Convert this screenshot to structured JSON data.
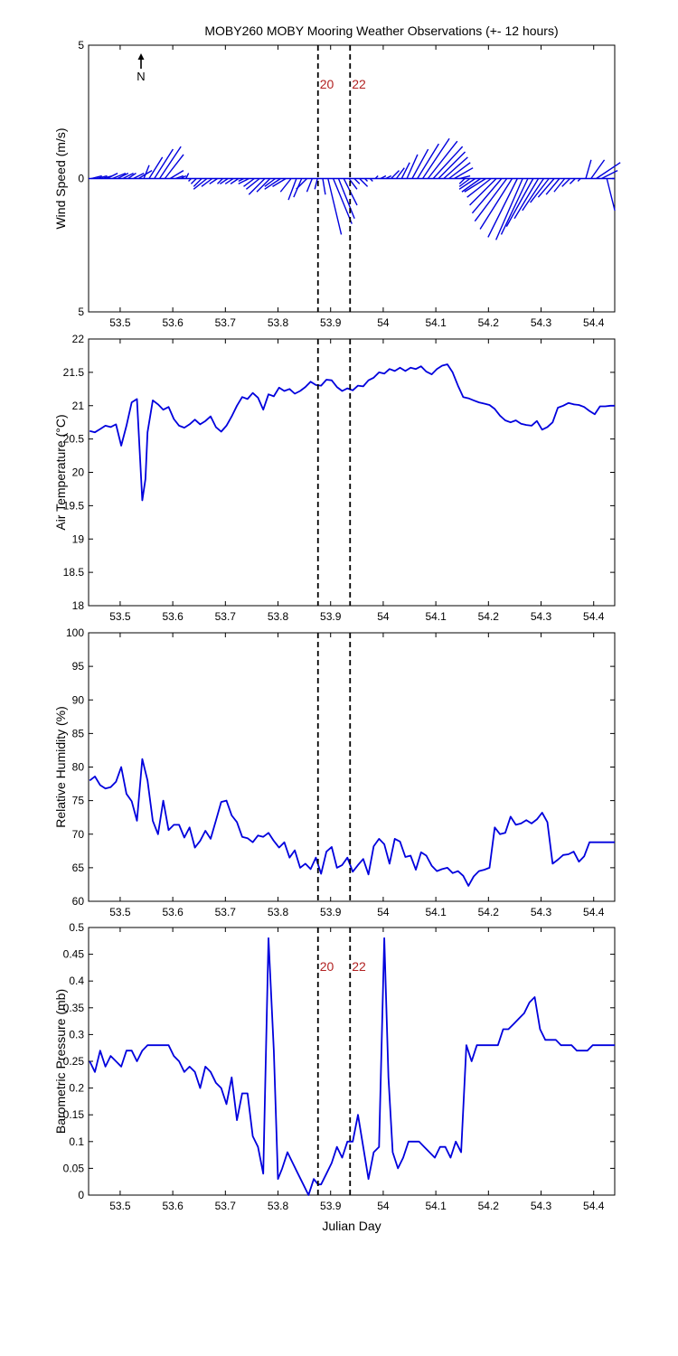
{
  "title": "MOBY260 MOBY Mooring Weather Observations (+- 12 hours)",
  "north_label": "N",
  "colors": {
    "series": "#0000dd",
    "marker_text": "#b22222",
    "axes": "#000000",
    "marker_line": "#000000"
  },
  "chart_data": [
    {
      "type": "line",
      "subtype": "wind-vector-stick",
      "ylabel": "Wind Speed (m/s)",
      "xlabel": "",
      "xlim": [
        53.44,
        54.44
      ],
      "ylim": [
        -5,
        5
      ],
      "y_tick_labels": [
        "5",
        "0",
        "5"
      ],
      "y_ticks": [
        5,
        0,
        -5
      ],
      "x_ticks": [
        53.5,
        53.6,
        53.7,
        53.8,
        53.9,
        54.0,
        54.1,
        54.2,
        54.3,
        54.4
      ],
      "x_tick_labels": [
        "53.5",
        "53.6",
        "53.7",
        "53.8",
        "53.9",
        "54",
        "54.1",
        "54.2",
        "54.3",
        "54.4"
      ],
      "markers": [
        {
          "x": 53.876,
          "label": "20"
        },
        {
          "x": 53.937,
          "label": "22"
        }
      ],
      "grid": false,
      "x": [
        53.445,
        53.455,
        53.465,
        53.475,
        53.485,
        53.495,
        53.505,
        53.515,
        53.525,
        53.535,
        53.545,
        53.555,
        53.565,
        53.575,
        53.585,
        53.595,
        53.605,
        53.615,
        53.625,
        53.635,
        53.645,
        53.655,
        53.665,
        53.675,
        53.685,
        53.695,
        53.705,
        53.715,
        53.725,
        53.735,
        53.745,
        53.755,
        53.765,
        53.775,
        53.785,
        53.795,
        53.805,
        53.815,
        53.825,
        53.835,
        53.845,
        53.855,
        53.865,
        53.875,
        53.885,
        53.895,
        53.905,
        53.915,
        53.925,
        53.935,
        53.945,
        53.955,
        53.965,
        53.975,
        53.985,
        53.995,
        54.005,
        54.015,
        54.025,
        54.035,
        54.045,
        54.055,
        54.065,
        54.075,
        54.085,
        54.095,
        54.105,
        54.115,
        54.125,
        54.135,
        54.145,
        54.155,
        54.165,
        54.175,
        54.185,
        54.195,
        54.205,
        54.215,
        54.225,
        54.235,
        54.245,
        54.255,
        54.265,
        54.275,
        54.285,
        54.295,
        54.305,
        54.315,
        54.325,
        54.335,
        54.345,
        54.355,
        54.365,
        54.375,
        54.385,
        54.395,
        54.405,
        54.415,
        54.425,
        54.435
      ],
      "u": [
        0.4,
        0.4,
        0.4,
        0.4,
        0.5,
        0.4,
        0.4,
        0.3,
        0.4,
        0.5,
        0.2,
        0.5,
        0.7,
        0.8,
        0.7,
        0.5,
        0.3,
        0.2,
        0.1,
        -0.1,
        -0.2,
        -0.3,
        -0.5,
        -0.4,
        -0.3,
        -0.2,
        -0.3,
        -0.3,
        -0.3,
        -0.2,
        -0.4,
        -0.4,
        -0.5,
        -0.6,
        -0.5,
        -0.4,
        -0.6,
        -0.5,
        -0.4,
        -0.3,
        -0.3,
        -0.4,
        -0.2,
        -0.1,
        0.1,
        0.5,
        0.7,
        0.6,
        0.5,
        0.3,
        0.2,
        0.3,
        0.1,
        0.1,
        0.1,
        0.2,
        0.2,
        0.3,
        0.3,
        0.3,
        0.4,
        0.6,
        0.8,
        1.0,
        1.1,
        1.1,
        1.0,
        0.9,
        0.8,
        0.7,
        0.4,
        -0.2,
        -0.4,
        -0.6,
        -0.7,
        -0.8,
        -0.9,
        -1.0,
        -1.1,
        -1.2,
        -1.2,
        -1.1,
        -1.0,
        -1.0,
        -1.0,
        -0.9,
        -0.8,
        -0.7,
        -0.6,
        -0.5,
        -0.4,
        -0.3,
        -0.2,
        -0.1,
        0.2,
        0.5,
        0.9,
        0.6,
        0.3,
        0.1
      ],
      "v": [
        0.1,
        0.1,
        0.1,
        0.2,
        0.2,
        0.2,
        0.2,
        0.2,
        0.2,
        0.3,
        0.5,
        0.8,
        1.1,
        1.2,
        0.9,
        0.3,
        0.1,
        0.1,
        0.2,
        -0.1,
        -0.2,
        -0.3,
        -0.4,
        -0.3,
        -0.2,
        -0.2,
        -0.2,
        -0.2,
        -0.2,
        -0.1,
        -0.2,
        -0.3,
        -0.4,
        -0.6,
        -0.5,
        -0.3,
        -0.4,
        -0.3,
        -0.5,
        -0.8,
        -0.7,
        -0.4,
        -0.5,
        -0.4,
        -0.6,
        -2.1,
        -1.7,
        -1.5,
        -1.0,
        -0.4,
        -0.2,
        -0.3,
        -0.1,
        -0.1,
        0.1,
        0.1,
        0.1,
        0.3,
        0.4,
        0.6,
        0.9,
        1.1,
        1.3,
        1.5,
        1.4,
        1.2,
        1.0,
        0.8,
        0.6,
        0.4,
        0.1,
        -0.2,
        -0.3,
        -0.4,
        -0.5,
        -0.5,
        -0.7,
        -1.0,
        -1.3,
        -1.6,
        -1.9,
        -2.2,
        -2.3,
        -2.1,
        -1.8,
        -1.5,
        -1.2,
        -0.9,
        -0.7,
        -0.6,
        -0.5,
        -0.3,
        -0.2,
        -0.1,
        0.7,
        0.7,
        0.6,
        0.3,
        -1.2,
        0.0
      ]
    },
    {
      "type": "line",
      "ylabel": "Air Temperature (°C)",
      "xlabel": "",
      "xlim": [
        53.44,
        54.44
      ],
      "ylim": [
        18,
        22
      ],
      "y_ticks": [
        18,
        18.5,
        19,
        19.5,
        20,
        20.5,
        21,
        21.5,
        22
      ],
      "y_tick_labels": [
        "18",
        "18.5",
        "19",
        "19.5",
        "20",
        "20.5",
        "21",
        "21.5",
        "22"
      ],
      "x_ticks": [
        53.5,
        53.6,
        53.7,
        53.8,
        53.9,
        54.0,
        54.1,
        54.2,
        54.3,
        54.4
      ],
      "x_tick_labels": [
        "53.5",
        "53.6",
        "53.7",
        "53.8",
        "53.9",
        "54",
        "54.1",
        "54.2",
        "54.3",
        "54.4"
      ],
      "markers": [
        {
          "x": 53.876,
          "label": ""
        },
        {
          "x": 53.937,
          "label": ""
        }
      ],
      "grid": false,
      "x": [
        53.442,
        53.452,
        53.462,
        53.472,
        53.482,
        53.492,
        53.502,
        53.512,
        53.522,
        53.532,
        53.542,
        53.548,
        53.552,
        53.562,
        53.572,
        53.582,
        53.592,
        53.602,
        53.612,
        53.622,
        53.632,
        53.642,
        53.652,
        53.662,
        53.672,
        53.682,
        53.692,
        53.702,
        53.712,
        53.722,
        53.732,
        53.742,
        53.752,
        53.762,
        53.772,
        53.782,
        53.792,
        53.802,
        53.812,
        53.822,
        53.832,
        53.842,
        53.852,
        53.862,
        53.872,
        53.882,
        53.892,
        53.902,
        53.912,
        53.922,
        53.932,
        53.942,
        53.952,
        53.962,
        53.972,
        53.982,
        53.992,
        54.002,
        54.012,
        54.022,
        54.032,
        54.042,
        54.052,
        54.062,
        54.072,
        54.082,
        54.092,
        54.102,
        54.112,
        54.122,
        54.132,
        54.142,
        54.152,
        54.162,
        54.172,
        54.182,
        54.192,
        54.202,
        54.212,
        54.222,
        54.232,
        54.242,
        54.252,
        54.262,
        54.272,
        54.282,
        54.292,
        54.302,
        54.312,
        54.322,
        54.332,
        54.342,
        54.352,
        54.362,
        54.372,
        54.382,
        54.392,
        54.402,
        54.412,
        54.422,
        54.432,
        54.44
      ],
      "y": [
        20.62,
        20.6,
        20.65,
        20.7,
        20.68,
        20.72,
        20.4,
        20.7,
        21.05,
        21.1,
        19.58,
        19.9,
        20.6,
        21.08,
        21.02,
        20.94,
        20.98,
        20.8,
        20.7,
        20.67,
        20.72,
        20.79,
        20.72,
        20.77,
        20.84,
        20.68,
        20.61,
        20.7,
        20.84,
        21.0,
        21.13,
        21.1,
        21.19,
        21.12,
        20.94,
        21.17,
        21.14,
        21.27,
        21.22,
        21.25,
        21.18,
        21.22,
        21.28,
        21.36,
        21.31,
        21.3,
        21.39,
        21.38,
        21.28,
        21.22,
        21.26,
        21.23,
        21.3,
        21.29,
        21.38,
        21.42,
        21.5,
        21.48,
        21.55,
        21.52,
        21.57,
        21.52,
        21.57,
        21.55,
        21.59,
        21.51,
        21.47,
        21.55,
        21.6,
        21.62,
        21.5,
        21.3,
        21.13,
        21.11,
        21.08,
        21.05,
        21.03,
        21.01,
        20.95,
        20.85,
        20.78,
        20.75,
        20.78,
        20.73,
        20.71,
        20.7,
        20.77,
        20.64,
        20.68,
        20.75,
        20.97,
        21.0,
        21.04,
        21.02,
        21.01,
        20.98,
        20.92,
        20.87,
        20.99,
        20.99,
        21.0,
        21.0
      ],
      "series": [
        {
          "values_key": "y"
        }
      ]
    },
    {
      "type": "line",
      "ylabel": "Relative Humidity (%)",
      "xlabel": "",
      "xlim": [
        53.44,
        54.44
      ],
      "ylim": [
        60,
        100
      ],
      "y_ticks": [
        60,
        65,
        70,
        75,
        80,
        85,
        90,
        95,
        100
      ],
      "y_tick_labels": [
        "60",
        "65",
        "70",
        "75",
        "80",
        "85",
        "90",
        "95",
        "100"
      ],
      "x_ticks": [
        53.5,
        53.6,
        53.7,
        53.8,
        53.9,
        54.0,
        54.1,
        54.2,
        54.3,
        54.4
      ],
      "x_tick_labels": [
        "53.5",
        "53.6",
        "53.7",
        "53.8",
        "53.9",
        "54",
        "54.1",
        "54.2",
        "54.3",
        "54.4"
      ],
      "markers": [
        {
          "x": 53.876,
          "label": ""
        },
        {
          "x": 53.937,
          "label": ""
        }
      ],
      "grid": false,
      "x": [
        53.442,
        53.452,
        53.462,
        53.472,
        53.482,
        53.492,
        53.502,
        53.512,
        53.522,
        53.532,
        53.542,
        53.552,
        53.562,
        53.572,
        53.582,
        53.592,
        53.602,
        53.612,
        53.622,
        53.632,
        53.642,
        53.652,
        53.662,
        53.672,
        53.682,
        53.692,
        53.702,
        53.712,
        53.722,
        53.732,
        53.742,
        53.752,
        53.762,
        53.772,
        53.782,
        53.792,
        53.802,
        53.812,
        53.822,
        53.832,
        53.842,
        53.852,
        53.862,
        53.872,
        53.882,
        53.892,
        53.902,
        53.912,
        53.922,
        53.932,
        53.942,
        53.952,
        53.962,
        53.972,
        53.982,
        53.992,
        54.002,
        54.012,
        54.022,
        54.032,
        54.042,
        54.052,
        54.062,
        54.072,
        54.082,
        54.092,
        54.102,
        54.112,
        54.122,
        54.132,
        54.142,
        54.152,
        54.162,
        54.172,
        54.182,
        54.192,
        54.202,
        54.212,
        54.222,
        54.232,
        54.242,
        54.252,
        54.262,
        54.272,
        54.282,
        54.292,
        54.302,
        54.312,
        54.322,
        54.332,
        54.342,
        54.352,
        54.362,
        54.372,
        54.382,
        54.392,
        54.402,
        54.412,
        54.422,
        54.432,
        54.44
      ],
      "y": [
        78,
        78.6,
        77.3,
        76.8,
        77.0,
        77.8,
        80.0,
        76.0,
        74.9,
        72.0,
        81.2,
        78.0,
        72.0,
        70.0,
        75.0,
        70.6,
        71.4,
        71.4,
        69.5,
        71.0,
        68.0,
        69.0,
        70.5,
        69.3,
        72.0,
        74.8,
        75.0,
        72.8,
        71.8,
        69.6,
        69.4,
        68.8,
        69.8,
        69.6,
        70.2,
        69.0,
        68.0,
        68.8,
        66.5,
        67.6,
        65.0,
        65.6,
        64.8,
        66.5,
        64.1,
        67.4,
        68.1,
        65.0,
        65.4,
        66.5,
        64.4,
        65.4,
        66.3,
        64.0,
        68.2,
        69.3,
        68.5,
        65.6,
        69.3,
        68.9,
        66.6,
        66.8,
        64.7,
        67.3,
        66.8,
        65.3,
        64.5,
        64.8,
        65.0,
        64.2,
        64.5,
        63.8,
        62.3,
        63.7,
        64.5,
        64.7,
        65.0,
        71.0,
        70.0,
        70.2,
        72.6,
        71.4,
        71.6,
        72.1,
        71.6,
        72.2,
        73.2,
        71.8,
        65.6,
        66.2,
        66.9,
        67.0,
        67.4,
        65.9,
        66.7,
        68.8,
        68.8,
        68.8,
        68.8,
        68.8,
        68.8
      ],
      "series": [
        {
          "values_key": "y"
        }
      ]
    },
    {
      "type": "line",
      "ylabel": "Barometric Pressure (mb)",
      "xlabel": "Julian Day",
      "xlim": [
        53.44,
        54.44
      ],
      "ylim": [
        0,
        0.5
      ],
      "y_ticks": [
        0,
        0.05,
        0.1,
        0.15,
        0.2,
        0.25,
        0.3,
        0.35,
        0.4,
        0.45,
        0.5
      ],
      "y_tick_labels": [
        "0",
        "0.05",
        "0.1",
        "0.15",
        "0.2",
        "0.25",
        "0.3",
        "0.35",
        "0.4",
        "0.45",
        "0.5"
      ],
      "x_ticks": [
        53.5,
        53.6,
        53.7,
        53.8,
        53.9,
        54.0,
        54.1,
        54.2,
        54.3,
        54.4
      ],
      "x_tick_labels": [
        "53.5",
        "53.6",
        "53.7",
        "53.8",
        "53.9",
        "54",
        "54.1",
        "54.2",
        "54.3",
        "54.4"
      ],
      "markers": [
        {
          "x": 53.876,
          "label": "20"
        },
        {
          "x": 53.937,
          "label": "22"
        }
      ],
      "grid": false,
      "x": [
        53.442,
        53.452,
        53.462,
        53.472,
        53.482,
        53.492,
        53.502,
        53.512,
        53.522,
        53.532,
        53.542,
        53.552,
        53.562,
        53.572,
        53.582,
        53.592,
        53.602,
        53.612,
        53.622,
        53.632,
        53.642,
        53.652,
        53.662,
        53.672,
        53.682,
        53.692,
        53.702,
        53.712,
        53.722,
        53.732,
        53.742,
        53.752,
        53.762,
        53.772,
        53.782,
        53.792,
        53.8,
        53.808,
        53.818,
        53.828,
        53.838,
        53.848,
        53.858,
        53.868,
        53.876,
        53.882,
        53.892,
        53.902,
        53.912,
        53.922,
        53.932,
        53.942,
        53.952,
        53.962,
        53.972,
        53.982,
        53.992,
        54.002,
        54.01,
        54.018,
        54.028,
        54.038,
        54.048,
        54.058,
        54.068,
        54.078,
        54.088,
        54.098,
        54.108,
        54.118,
        54.128,
        54.138,
        54.148,
        54.158,
        54.168,
        54.178,
        54.188,
        54.198,
        54.208,
        54.218,
        54.228,
        54.238,
        54.248,
        54.258,
        54.268,
        54.278,
        54.288,
        54.298,
        54.308,
        54.318,
        54.328,
        54.338,
        54.348,
        54.358,
        54.368,
        54.378,
        54.388,
        54.398,
        54.408,
        54.418,
        54.428,
        54.44
      ],
      "y": [
        0.25,
        0.23,
        0.27,
        0.24,
        0.26,
        0.25,
        0.24,
        0.27,
        0.27,
        0.25,
        0.27,
        0.28,
        0.28,
        0.28,
        0.28,
        0.28,
        0.26,
        0.25,
        0.23,
        0.24,
        0.23,
        0.2,
        0.24,
        0.23,
        0.21,
        0.2,
        0.17,
        0.22,
        0.14,
        0.19,
        0.19,
        0.11,
        0.09,
        0.04,
        0.48,
        0.27,
        0.03,
        0.05,
        0.08,
        0.06,
        0.04,
        0.02,
        0.0,
        0.03,
        0.02,
        0.02,
        0.04,
        0.06,
        0.09,
        0.07,
        0.1,
        0.1,
        0.15,
        0.09,
        0.03,
        0.08,
        0.09,
        0.48,
        0.22,
        0.08,
        0.05,
        0.07,
        0.1,
        0.1,
        0.1,
        0.09,
        0.08,
        0.07,
        0.09,
        0.09,
        0.07,
        0.1,
        0.08,
        0.28,
        0.25,
        0.28,
        0.28,
        0.28,
        0.28,
        0.28,
        0.31,
        0.31,
        0.32,
        0.33,
        0.34,
        0.36,
        0.37,
        0.31,
        0.29,
        0.29,
        0.29,
        0.28,
        0.28,
        0.28,
        0.27,
        0.27,
        0.27,
        0.28,
        0.28,
        0.28,
        0.28,
        0.28
      ],
      "series": [
        {
          "values_key": "y"
        }
      ]
    }
  ]
}
